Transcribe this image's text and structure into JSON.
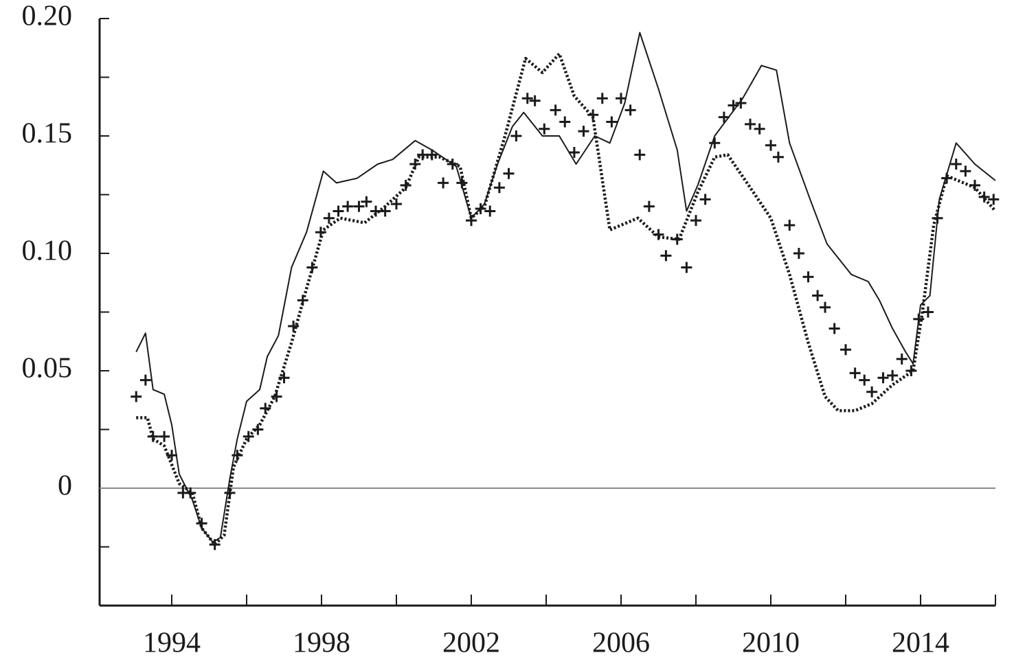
{
  "chart_data": {
    "type": "line",
    "xlim": [
      1992,
      2016
    ],
    "ylim": [
      -0.05,
      0.2
    ],
    "xticks": [
      1994,
      1998,
      2002,
      2006,
      2010,
      2014
    ],
    "xminorticks": [
      1996,
      2000,
      2004,
      2008,
      2012,
      2016
    ],
    "yticks": [
      0,
      0.05,
      {
        "value": 0.1,
        "label": "0.10"
      },
      0.15,
      {
        "value": 0.2,
        "label": "0.20"
      }
    ],
    "yminorticks": [
      -0.025,
      0.025,
      0.075,
      0.125,
      0.175
    ],
    "zero_line": true,
    "series": [
      {
        "color": "#1a1a1a",
        "style": "solid",
        "x": [
          1993.05,
          1993.3,
          1993.5,
          1993.8,
          1994.0,
          1994.2,
          1994.55,
          1994.8,
          1995.1,
          1995.3,
          1995.55,
          1995.75,
          1996.0,
          1996.35,
          1996.55,
          1996.85,
          1997.2,
          1997.6,
          1998.05,
          1998.4,
          1998.95,
          1999.5,
          1999.9,
          2000.5,
          2000.95,
          2001.6,
          2002.0,
          2002.35,
          2002.7,
          2003.1,
          2003.4,
          2003.9,
          2004.35,
          2004.8,
          2005.3,
          2005.7,
          2006.1,
          2006.5,
          2007.0,
          2007.5,
          2007.75,
          2008.05,
          2008.5,
          2009.25,
          2009.75,
          2010.15,
          2010.5,
          2011.05,
          2011.5,
          2012.15,
          2012.6,
          2012.9,
          2013.25,
          2013.6,
          2013.8,
          2014.0,
          2014.25,
          2014.5,
          2014.95,
          2015.45,
          2016.0
        ],
        "values": [
          0.058,
          0.066,
          0.042,
          0.04,
          0.027,
          0.006,
          -0.005,
          -0.017,
          -0.023,
          -0.021,
          0.004,
          0.021,
          0.037,
          0.042,
          0.056,
          0.065,
          0.094,
          0.109,
          0.135,
          0.13,
          0.132,
          0.138,
          0.14,
          0.148,
          0.144,
          0.137,
          0.115,
          0.121,
          0.138,
          0.154,
          0.16,
          0.15,
          0.15,
          0.138,
          0.15,
          0.147,
          0.164,
          0.194,
          0.17,
          0.144,
          0.118,
          0.129,
          0.15,
          0.166,
          0.18,
          0.178,
          0.147,
          0.123,
          0.104,
          0.091,
          0.088,
          0.08,
          0.068,
          0.058,
          0.053,
          0.078,
          0.082,
          0.123,
          0.147,
          0.138,
          0.131
        ]
      },
      {
        "color": "#1a1a1a",
        "style": "dotted",
        "x": [
          1993.05,
          1993.35,
          1993.5,
          1993.8,
          1994.2,
          1994.55,
          1994.8,
          1995.15,
          1995.4,
          1995.65,
          1996.0,
          1996.35,
          1996.75,
          1997.2,
          1997.6,
          1998.05,
          1998.5,
          1999.15,
          1999.7,
          2000.25,
          2000.6,
          2001.15,
          2001.7,
          2002.0,
          2002.35,
          2002.9,
          2003.45,
          2003.9,
          2004.35,
          2004.75,
          2005.25,
          2005.7,
          2006.45,
          2007.0,
          2007.55,
          2008.05,
          2008.5,
          2008.85,
          2009.45,
          2010.0,
          2010.5,
          2011.0,
          2011.45,
          2011.8,
          2012.25,
          2012.7,
          2013.25,
          2013.8,
          2014.05,
          2014.35,
          2014.7,
          2015.45,
          2016.0
        ],
        "values": [
          0.03,
          0.03,
          0.021,
          0.018,
          0.002,
          -0.002,
          -0.017,
          -0.024,
          -0.02,
          0.009,
          0.021,
          0.027,
          0.039,
          0.062,
          0.085,
          0.11,
          0.115,
          0.113,
          0.12,
          0.128,
          0.141,
          0.141,
          0.137,
          0.115,
          0.12,
          0.15,
          0.183,
          0.177,
          0.185,
          0.167,
          0.158,
          0.11,
          0.115,
          0.107,
          0.106,
          0.126,
          0.141,
          0.142,
          0.128,
          0.115,
          0.091,
          0.062,
          0.039,
          0.033,
          0.033,
          0.036,
          0.044,
          0.05,
          0.075,
          0.112,
          0.133,
          0.128,
          0.118
        ]
      },
      {
        "color": "#1a1a1a",
        "style": "markers",
        "marker": "plus",
        "x": [
          1993.05,
          1993.3,
          1993.5,
          1993.8,
          1994.0,
          1994.3,
          1994.5,
          1994.8,
          1995.15,
          1995.55,
          1995.75,
          1996.05,
          1996.3,
          1996.5,
          1996.8,
          1997.0,
          1997.25,
          1997.5,
          1997.75,
          1997.98,
          1998.2,
          1998.45,
          1998.7,
          1999.0,
          1999.2,
          1999.45,
          1999.7,
          2000.0,
          2000.25,
          2000.5,
          2000.7,
          2000.95,
          2001.25,
          2001.5,
          2001.75,
          2002.0,
          2002.25,
          2002.5,
          2002.75,
          2003.0,
          2003.2,
          2003.5,
          2003.7,
          2003.95,
          2004.25,
          2004.5,
          2004.75,
          2005.0,
          2005.25,
          2005.5,
          2005.75,
          2006.0,
          2006.25,
          2006.5,
          2006.75,
          2007.0,
          2007.2,
          2007.5,
          2007.75,
          2008.0,
          2008.25,
          2008.5,
          2008.75,
          2009.0,
          2009.2,
          2009.45,
          2009.7,
          2010.0,
          2010.2,
          2010.5,
          2010.75,
          2011.0,
          2011.25,
          2011.45,
          2011.7,
          2012.0,
          2012.25,
          2012.5,
          2012.7,
          2013.0,
          2013.25,
          2013.5,
          2013.75,
          2013.95,
          2014.2,
          2014.45,
          2014.7,
          2014.95,
          2015.2,
          2015.45,
          2015.7,
          2015.95
        ],
        "values": [
          0.039,
          0.046,
          0.022,
          0.022,
          0.014,
          -0.002,
          -0.002,
          -0.015,
          -0.024,
          -0.002,
          0.014,
          0.022,
          0.025,
          0.034,
          0.039,
          0.047,
          0.069,
          0.08,
          0.094,
          0.109,
          0.115,
          0.118,
          0.12,
          0.12,
          0.122,
          0.118,
          0.118,
          0.121,
          0.129,
          0.138,
          0.142,
          0.142,
          0.13,
          0.138,
          0.13,
          0.114,
          0.119,
          0.118,
          0.128,
          0.134,
          0.15,
          0.166,
          0.165,
          0.153,
          0.161,
          0.156,
          0.143,
          0.152,
          0.159,
          0.166,
          0.156,
          0.166,
          0.161,
          0.142,
          0.12,
          0.108,
          0.099,
          0.106,
          0.094,
          0.114,
          0.123,
          0.147,
          0.158,
          0.163,
          0.164,
          0.155,
          0.153,
          0.146,
          0.141,
          0.112,
          0.1,
          0.09,
          0.082,
          0.077,
          0.068,
          0.059,
          0.049,
          0.046,
          0.041,
          0.047,
          0.048,
          0.055,
          0.05,
          0.072,
          0.075,
          0.115,
          0.132,
          0.138,
          0.135,
          0.129,
          0.124,
          0.123
        ]
      }
    ]
  }
}
